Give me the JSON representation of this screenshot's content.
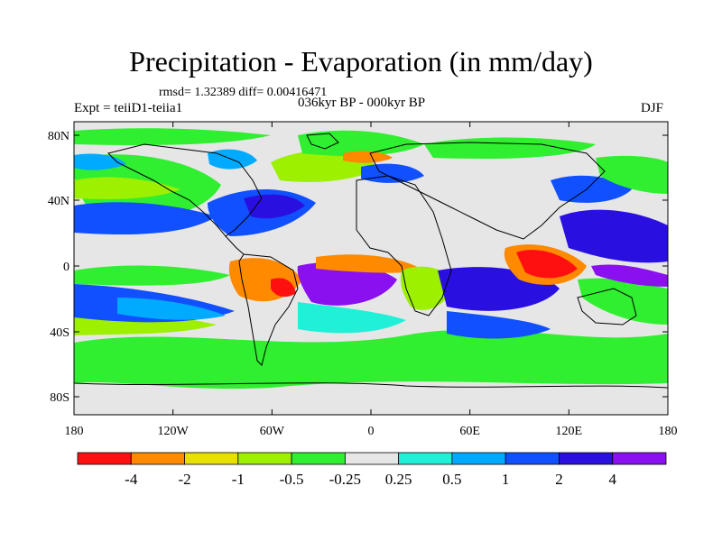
{
  "header": {
    "title": "Precipitation - Evaporation (in mm/day)",
    "stats": "rmsd= 1.32389 diff= 0.00416471",
    "expt": "Expt = teiiD1-teiia1",
    "period": "036kyr BP - 000kyr BP",
    "season": "DJF"
  },
  "map": {
    "lat_ticks": [
      "80N",
      "40N",
      "0",
      "40S",
      "80S"
    ],
    "lon_ticks": [
      "180",
      "120W",
      "60W",
      "0",
      "60E",
      "120E",
      "180"
    ]
  },
  "colorbar": {
    "colors": [
      "#ff1010",
      "#ff8a00",
      "#e8e000",
      "#9cf000",
      "#30ee30",
      "#e6e6e6",
      "#20f0d8",
      "#00aaff",
      "#1050ff",
      "#2a10e0",
      "#8a10f0"
    ],
    "labels": [
      "-4",
      "-2",
      "-1",
      "-0.5",
      "-0.25",
      "0.25",
      "0.5",
      "1",
      "2",
      "4"
    ]
  },
  "colors": {
    "ocean_neutral": "#e6e6e6",
    "coastline": "#000000"
  }
}
